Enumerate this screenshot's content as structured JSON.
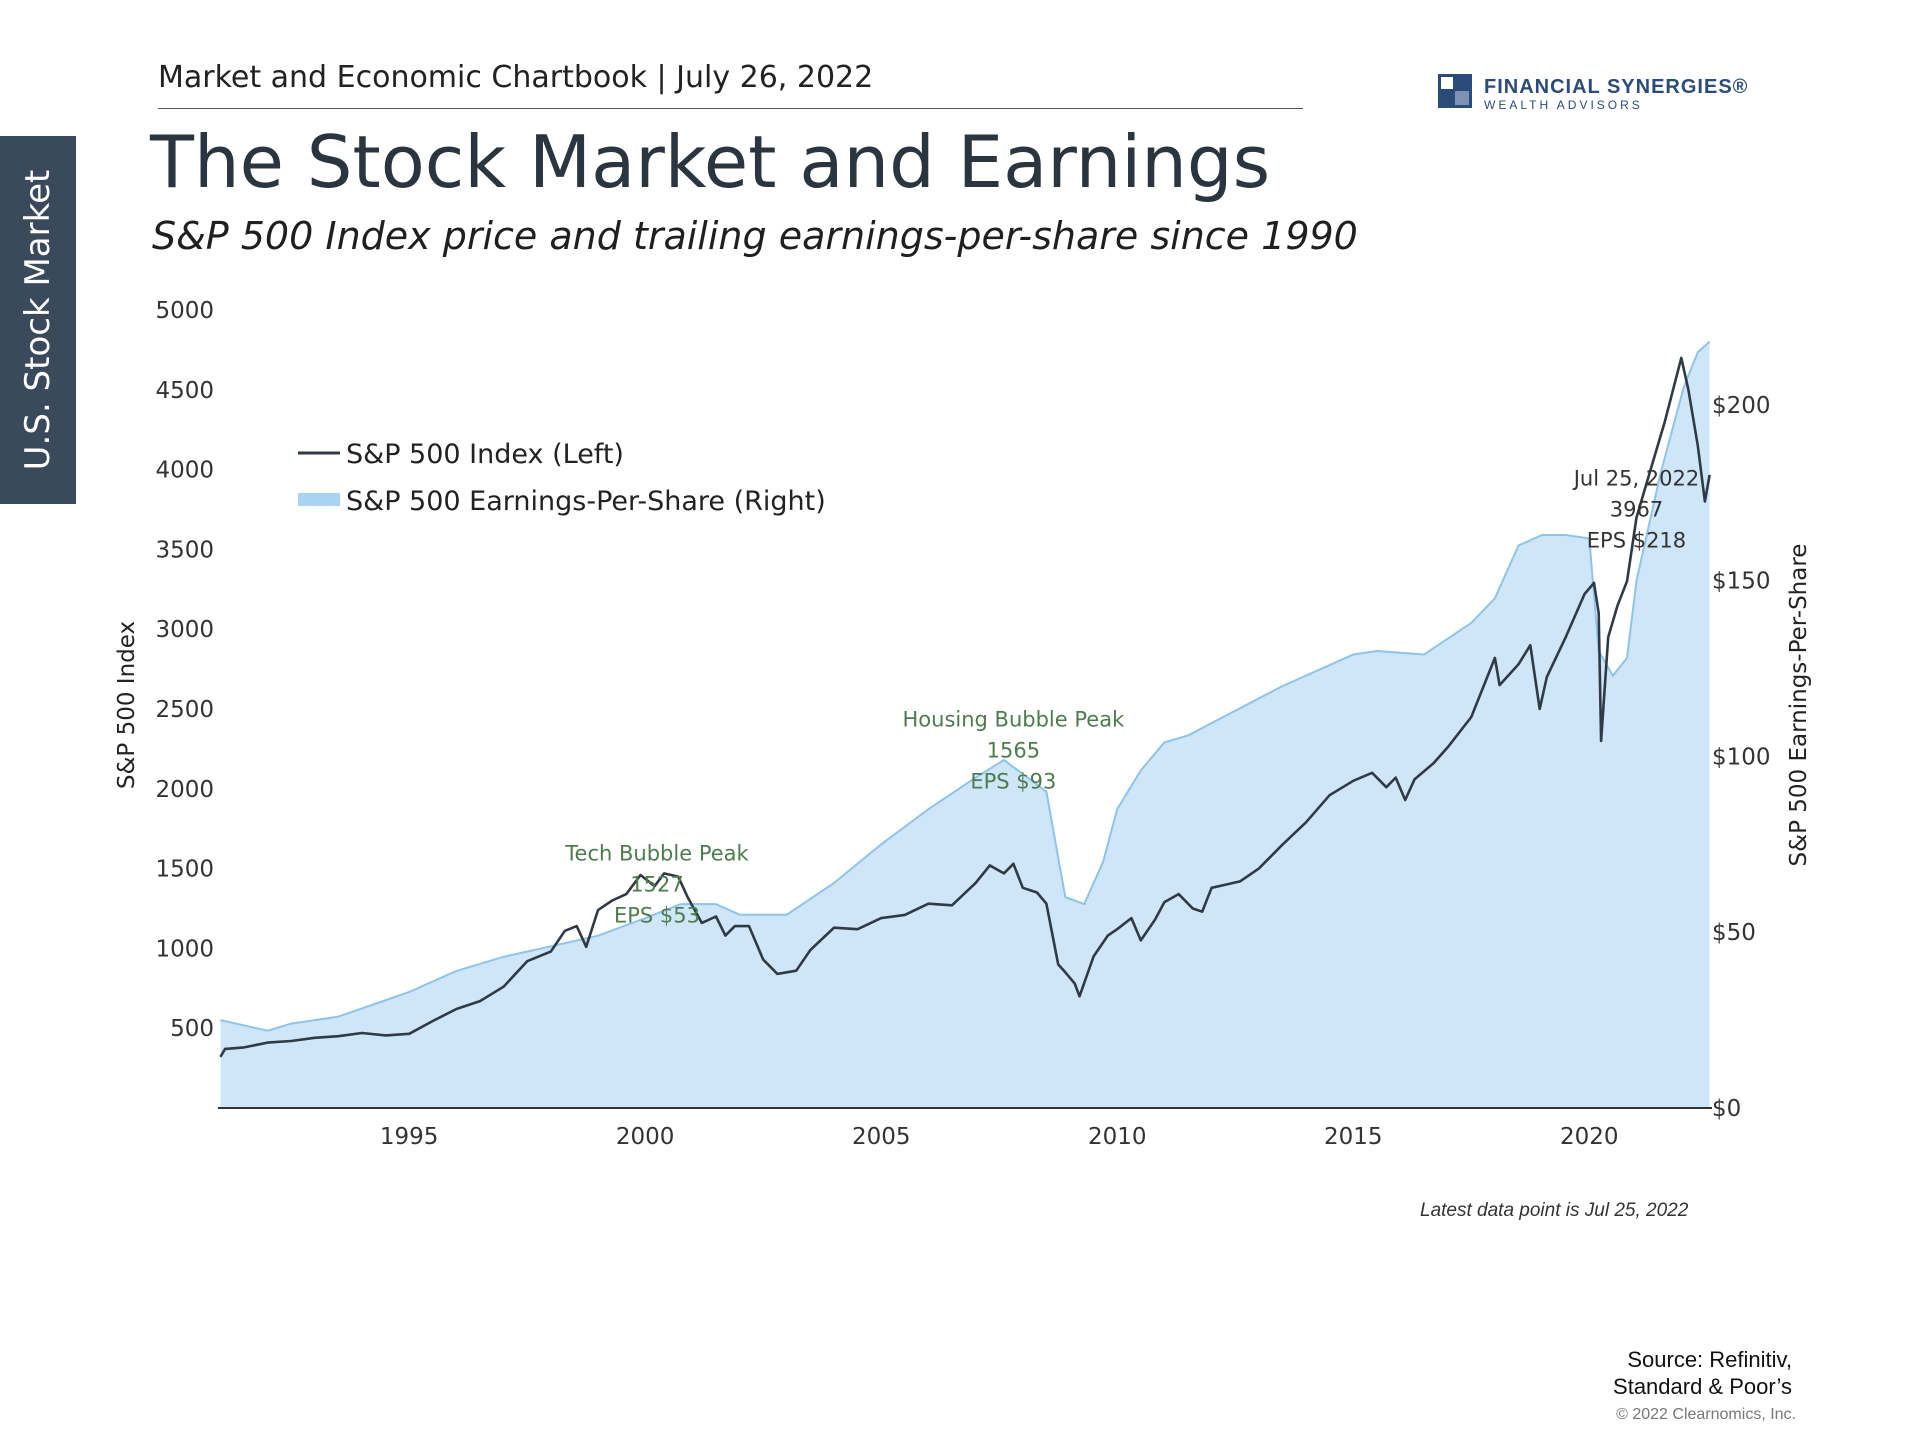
{
  "side_tab": "U.S. Stock Market",
  "header": {
    "chartbook": "Market and Economic Chartbook | July 26, 2022",
    "title": "The Stock Market and Earnings",
    "subtitle": "S&P 500 Index price and trailing earnings-per-share since 1990"
  },
  "logo": {
    "name": "FINANCIAL SYNERGIES®",
    "sub": "WEALTH ADVISORS"
  },
  "colors": {
    "line": "#2f3a46",
    "area": "#cfe6f9",
    "area_edge": "#8fc3ec",
    "annotation": "#4d7c4d"
  },
  "chart_data": {
    "type": "line",
    "xlim": [
      1990.95,
      2022.6
    ],
    "ylim": [
      0,
      5000
    ],
    "y2lim": [
      0,
      227
    ],
    "x_ticks": [
      "1995",
      "2000",
      "2005",
      "2010",
      "2015",
      "2020"
    ],
    "y_ticks": [
      "500",
      "1000",
      "1500",
      "2000",
      "2500",
      "3000",
      "3500",
      "4000",
      "4500",
      "5000"
    ],
    "y2_ticks": [
      "$0",
      "$50",
      "$100",
      "$150",
      "$200"
    ],
    "ylabel": "S&P 500 Index",
    "y2label": "S&P 500 Earnings-Per-Share",
    "series": [
      {
        "name": "S&P 500 Index (Left)",
        "axis": "left",
        "x": [
          1991.0,
          1991.1,
          1991.5,
          1992.0,
          1992.5,
          1993.0,
          1993.5,
          1994.0,
          1994.5,
          1995.0,
          1995.5,
          1996.0,
          1996.5,
          1997.0,
          1997.5,
          1998.0,
          1998.3,
          1998.55,
          1998.75,
          1999.0,
          1999.3,
          1999.6,
          1999.9,
          2000.2,
          2000.4,
          2000.7,
          2000.9,
          2001.2,
          2001.5,
          2001.7,
          2001.9,
          2002.2,
          2002.5,
          2002.8,
          2003.0,
          2003.2,
          2003.5,
          2004.0,
          2004.5,
          2005.0,
          2005.5,
          2006.0,
          2006.5,
          2007.0,
          2007.3,
          2007.6,
          2007.8,
          2008.0,
          2008.3,
          2008.5,
          2008.75,
          2008.9,
          2009.1,
          2009.2,
          2009.5,
          2009.8,
          2010.0,
          2010.3,
          2010.5,
          2010.8,
          2011.0,
          2011.3,
          2011.6,
          2011.8,
          2012.0,
          2012.3,
          2012.6,
          2013.0,
          2013.5,
          2014.0,
          2014.5,
          2015.0,
          2015.4,
          2015.7,
          2015.9,
          2016.1,
          2016.3,
          2016.7,
          2017.0,
          2017.5,
          2018.0,
          2018.1,
          2018.5,
          2018.75,
          2018.95,
          2019.1,
          2019.5,
          2019.9,
          2020.1,
          2020.2,
          2020.25,
          2020.4,
          2020.6,
          2020.8,
          2021.0,
          2021.3,
          2021.6,
          2021.95,
          2022.1,
          2022.3,
          2022.45,
          2022.55
        ],
        "y": [
          320,
          370,
          380,
          410,
          420,
          440,
          450,
          470,
          455,
          465,
          545,
          620,
          670,
          760,
          920,
          980,
          1110,
          1140,
          1010,
          1240,
          1300,
          1340,
          1460,
          1390,
          1470,
          1450,
          1320,
          1160,
          1200,
          1080,
          1140,
          1140,
          930,
          840,
          850,
          860,
          990,
          1130,
          1120,
          1190,
          1210,
          1280,
          1270,
          1410,
          1520,
          1470,
          1530,
          1380,
          1350,
          1280,
          900,
          850,
          780,
          700,
          950,
          1080,
          1120,
          1190,
          1050,
          1180,
          1290,
          1340,
          1250,
          1230,
          1380,
          1400,
          1420,
          1500,
          1650,
          1790,
          1960,
          2050,
          2100,
          2010,
          2070,
          1930,
          2060,
          2160,
          2260,
          2450,
          2820,
          2650,
          2780,
          2900,
          2500,
          2700,
          2950,
          3220,
          3290,
          3100,
          2300,
          2950,
          3150,
          3300,
          3700,
          4000,
          4300,
          4700,
          4500,
          4150,
          3800,
          3967
        ]
      },
      {
        "name": "S&P 500 Earnings-Per-Share (Right)",
        "axis": "right",
        "x": [
          1991.0,
          1992.0,
          1992.5,
          1993.5,
          1995.0,
          1996.0,
          1997.0,
          1998.0,
          1999.0,
          2000.0,
          2000.75,
          2001.5,
          2002.0,
          2003.0,
          2004.0,
          2005.0,
          2006.0,
          2007.0,
          2007.6,
          2008.0,
          2008.5,
          2008.9,
          2009.3,
          2009.7,
          2010.0,
          2010.5,
          2011.0,
          2011.5,
          2012.5,
          2013.5,
          2014.5,
          2015.0,
          2015.5,
          2016.5,
          2017.5,
          2018.0,
          2018.5,
          2019.0,
          2019.5,
          2020.0,
          2020.2,
          2020.5,
          2020.8,
          2021.0,
          2021.5,
          2022.0,
          2022.3,
          2022.55
        ],
        "y": [
          25,
          22,
          24,
          26,
          33,
          39,
          43,
          46,
          49,
          54,
          58,
          58,
          55,
          55,
          64,
          75,
          85,
          94,
          99,
          95,
          90,
          60,
          58,
          70,
          85,
          96,
          104,
          106,
          113,
          120,
          126,
          129,
          130,
          129,
          138,
          145,
          160,
          163,
          163,
          162,
          130,
          123,
          128,
          150,
          180,
          205,
          215,
          218
        ]
      }
    ],
    "annotations": [
      {
        "x": 2000.25,
        "y": 1550,
        "lines": [
          "Tech Bubble Peak",
          "1527",
          "EPS $53"
        ]
      },
      {
        "x": 2007.8,
        "y": 2390,
        "lines": [
          "Housing Bubble Peak",
          "1565",
          "EPS $93"
        ]
      },
      {
        "x": 2021.0,
        "y": 3900,
        "lines": [
          "Jul 25, 2022",
          "3967",
          "EPS $218"
        ]
      }
    ],
    "legend": "top-left"
  },
  "latest_note": "Latest data point is Jul 25, 2022",
  "source": {
    "line1": "Source: Refinitiv,",
    "line2": "Standard & Poor’s"
  },
  "copyright": "© 2022 Clearnomics, Inc."
}
